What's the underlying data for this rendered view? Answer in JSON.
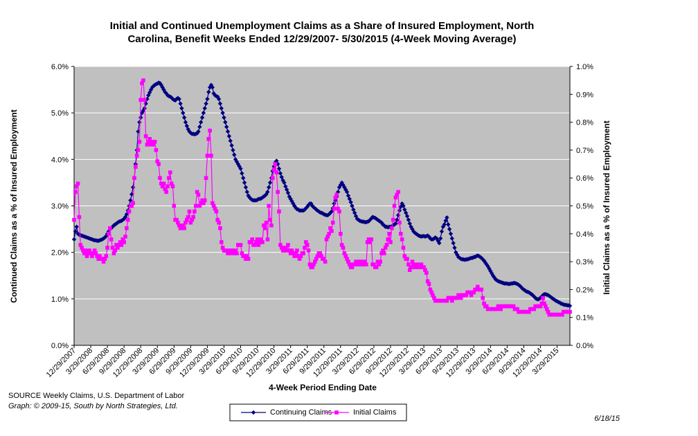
{
  "chart_data": {
    "type": "line",
    "title": [
      "Initial and Continued Unemployment Claims as a Share of Insured Employment, North",
      "Carolina, Benefit Weeks Ended 12/29/2007- 5/30/2015 (4-Week Moving Average)"
    ],
    "xlabel": "4-Week Period Ending Date",
    "ylabel": "Continued Claims as a % of Insured Employment",
    "y2label": "Initial Claims as a % of Insured Employment",
    "categories": [
      "12/29/2007",
      null,
      null,
      null,
      null,
      null,
      null,
      null,
      null,
      null,
      null,
      null,
      null,
      "3/29/2008",
      null,
      null,
      null,
      null,
      null,
      null,
      null,
      null,
      null,
      null,
      null,
      null,
      "6/29/2008",
      null,
      null,
      null,
      null,
      null,
      null,
      null,
      null,
      null,
      null,
      null,
      null,
      "9/29/2008",
      null,
      null,
      null,
      null,
      null,
      null,
      null,
      null,
      null,
      null,
      null,
      null,
      "12/29/2008",
      null,
      null,
      null,
      null,
      null,
      null,
      null,
      null,
      null,
      null,
      null,
      null,
      "3/29/2009",
      null,
      null,
      null,
      null,
      null,
      null,
      null,
      null,
      null,
      null,
      null,
      null,
      "6/29/2009",
      null,
      null,
      null,
      null,
      null,
      null,
      null,
      null,
      null,
      null,
      null,
      null,
      "9/29/2009",
      null,
      null,
      null,
      null,
      null,
      null,
      null,
      null,
      null,
      null,
      null,
      null,
      "12/29/2009",
      null,
      null,
      null,
      null,
      null,
      null,
      null,
      null,
      null,
      null,
      null,
      null,
      "3/29/2010",
      null,
      null,
      null,
      null,
      null,
      null,
      null,
      null,
      null,
      null,
      null,
      null,
      "6/29/2010",
      null,
      null,
      null,
      null,
      null,
      null,
      null,
      null,
      null,
      null,
      null,
      null,
      "9/29/2010",
      null,
      null,
      null,
      null,
      null,
      null,
      null,
      null,
      null,
      null,
      null,
      null,
      "12/29/2010",
      null,
      null,
      null,
      null,
      null,
      null,
      null,
      null,
      null,
      null,
      null,
      null,
      "3/29/2011",
      null,
      null,
      null,
      null,
      null,
      null,
      null,
      null,
      null,
      null,
      null,
      null,
      "6/29/2011",
      null,
      null,
      null,
      null,
      null,
      null,
      null,
      null,
      null,
      null,
      null,
      null,
      "9/29/2011",
      null,
      null,
      null,
      null,
      null,
      null,
      null,
      null,
      null,
      null,
      null,
      null,
      "12/29/2011",
      null,
      null,
      null,
      null,
      null,
      null,
      null,
      null,
      null,
      null,
      null,
      null,
      "3/29/2012",
      null,
      null,
      null,
      null,
      null,
      null,
      null,
      null,
      null,
      null,
      null,
      null,
      "6/29/2012",
      null,
      null,
      null,
      null,
      null,
      null,
      null,
      null,
      null,
      null,
      null,
      null,
      "9/29/2012",
      null,
      null,
      null,
      null,
      null,
      null,
      null,
      null,
      null,
      null,
      null,
      null,
      "12/29/2012",
      null,
      null,
      null,
      null,
      null,
      null,
      null,
      null,
      null,
      null,
      null,
      null,
      "3/29/2013",
      null,
      null,
      null,
      null,
      null,
      null,
      null,
      null,
      null,
      null,
      null,
      null,
      "6/29/2013",
      null,
      null,
      null,
      null,
      null,
      null,
      null,
      null,
      null,
      null,
      null,
      null,
      "9/29/2013",
      null,
      null,
      null,
      null,
      null,
      null,
      null,
      null,
      null,
      null,
      null,
      null,
      "12/29/2013",
      null,
      null,
      null,
      null,
      null,
      null,
      null,
      null,
      null,
      null,
      null,
      null,
      "3/29/2014",
      null,
      null,
      null,
      null,
      null,
      null,
      null,
      null,
      null,
      null,
      null,
      null,
      "6/29/2014",
      null,
      null,
      null,
      null,
      null,
      null,
      null,
      null,
      null,
      null,
      null,
      null,
      "9/29/2014",
      null,
      null,
      null,
      null,
      null,
      null,
      null,
      null,
      null,
      null,
      null,
      null,
      "12/29/2014",
      null,
      null,
      null,
      null,
      null,
      null,
      null,
      null,
      null,
      null,
      null,
      null,
      "3/29/2015",
      null,
      null,
      null,
      null,
      null,
      null,
      null,
      null,
      null,
      null
    ],
    "series": [
      {
        "name": "Continuing Claims",
        "color": "#000080",
        "marker": "diamond",
        "values": [
          2.28,
          2.45,
          2.55,
          2.4,
          2.38,
          2.37,
          2.36,
          2.35,
          2.34,
          2.33,
          2.32,
          2.31,
          2.3,
          2.29,
          2.28,
          2.27,
          2.26,
          2.26,
          2.25,
          2.25,
          2.26,
          2.27,
          2.28,
          2.3,
          2.32,
          2.35,
          2.4,
          2.45,
          2.5,
          2.52,
          2.55,
          2.58,
          2.6,
          2.62,
          2.64,
          2.66,
          2.67,
          2.68,
          2.7,
          2.72,
          2.76,
          2.82,
          2.9,
          3.0,
          3.12,
          3.25,
          3.4,
          3.6,
          3.9,
          4.2,
          4.6,
          4.8,
          4.9,
          5.0,
          5.05,
          5.1,
          5.2,
          5.3,
          5.38,
          5.44,
          5.5,
          5.55,
          5.58,
          5.6,
          5.62,
          5.63,
          5.65,
          5.64,
          5.6,
          5.55,
          5.5,
          5.45,
          5.42,
          5.38,
          5.36,
          5.35,
          5.33,
          5.3,
          5.28,
          5.27,
          5.3,
          5.32,
          5.3,
          5.2,
          5.1,
          5.0,
          4.9,
          4.8,
          4.72,
          4.65,
          4.6,
          4.57,
          4.55,
          4.55,
          4.54,
          4.55,
          4.56,
          4.6,
          4.7,
          4.8,
          4.9,
          5.0,
          5.1,
          5.2,
          5.3,
          5.45,
          5.55,
          5.6,
          5.55,
          5.42,
          5.38,
          5.36,
          5.35,
          5.3,
          5.2,
          5.1,
          5.0,
          4.9,
          4.8,
          4.7,
          4.6,
          4.5,
          4.4,
          4.3,
          4.2,
          4.1,
          4.0,
          3.95,
          3.9,
          3.85,
          3.8,
          3.7,
          3.6,
          3.5,
          3.4,
          3.3,
          3.22,
          3.18,
          3.15,
          3.13,
          3.12,
          3.12,
          3.12,
          3.13,
          3.15,
          3.15,
          3.16,
          3.18,
          3.2,
          3.22,
          3.25,
          3.3,
          3.4,
          3.5,
          3.6,
          3.75,
          3.85,
          3.93,
          3.97,
          3.9,
          3.8,
          3.7,
          3.62,
          3.55,
          3.5,
          3.42,
          3.35,
          3.28,
          3.2,
          3.15,
          3.1,
          3.05,
          3.0,
          2.96,
          2.93,
          2.92,
          2.9,
          2.9,
          2.9,
          2.9,
          2.92,
          2.95,
          2.98,
          3.02,
          3.05,
          3.05,
          3.0,
          2.97,
          2.95,
          2.92,
          2.9,
          2.88,
          2.86,
          2.85,
          2.84,
          2.82,
          2.81,
          2.8,
          2.8,
          2.82,
          2.85,
          2.88,
          2.95,
          3.05,
          3.12,
          3.2,
          3.3,
          3.4,
          3.45,
          3.5,
          3.45,
          3.4,
          3.35,
          3.3,
          3.22,
          3.15,
          3.08,
          3.0,
          2.92,
          2.85,
          2.78,
          2.72,
          2.7,
          2.68,
          2.67,
          2.66,
          2.66,
          2.65,
          2.65,
          2.66,
          2.67,
          2.7,
          2.73,
          2.76,
          2.75,
          2.74,
          2.72,
          2.7,
          2.68,
          2.66,
          2.64,
          2.6,
          2.58,
          2.55,
          2.55,
          2.54,
          2.55,
          2.55,
          2.56,
          2.58,
          2.6,
          2.62,
          2.7,
          2.8,
          2.9,
          2.98,
          3.05,
          3.0,
          2.92,
          2.85,
          2.78,
          2.7,
          2.62,
          2.55,
          2.5,
          2.45,
          2.42,
          2.4,
          2.38,
          2.36,
          2.35,
          2.34,
          2.35,
          2.35,
          2.34,
          2.35,
          2.36,
          2.34,
          2.3,
          2.28,
          2.28,
          2.3,
          2.32,
          2.3,
          2.25,
          2.2,
          2.3,
          2.45,
          2.55,
          2.6,
          2.68,
          2.75,
          2.6,
          2.5,
          2.4,
          2.3,
          2.2,
          2.1,
          2.0,
          1.95,
          1.9,
          1.88,
          1.86,
          1.85,
          1.85,
          1.84,
          1.85,
          1.85,
          1.86,
          1.87,
          1.88,
          1.88,
          1.9,
          1.9,
          1.92,
          1.93,
          1.92,
          1.9,
          1.88,
          1.85,
          1.82,
          1.78,
          1.74,
          1.7,
          1.65,
          1.6,
          1.55,
          1.5,
          1.46,
          1.42,
          1.4,
          1.38,
          1.37,
          1.36,
          1.35,
          1.34,
          1.33,
          1.33,
          1.33,
          1.32,
          1.32,
          1.33,
          1.33,
          1.34,
          1.34,
          1.33,
          1.32,
          1.3,
          1.28,
          1.25,
          1.22,
          1.2,
          1.18,
          1.16,
          1.15,
          1.14,
          1.12,
          1.1,
          1.08,
          1.05,
          1.02,
          1.0,
          0.99,
          1.0,
          1.02,
          1.05,
          1.08,
          1.1,
          1.1,
          1.09,
          1.08,
          1.06,
          1.04,
          1.02,
          1.0,
          0.98,
          0.96,
          0.95,
          0.93,
          0.92,
          0.9,
          0.89,
          0.88,
          0.87,
          0.87,
          0.86,
          0.86,
          0.85
        ]
      },
      {
        "name": "Initial Claims",
        "color": "#ff00ff",
        "marker": "square",
        "axis": "y2",
        "values": [
          0.45,
          0.55,
          0.57,
          0.58,
          0.46,
          0.36,
          0.35,
          0.34,
          0.33,
          0.34,
          0.32,
          0.33,
          0.34,
          0.33,
          0.32,
          0.33,
          0.34,
          0.33,
          0.32,
          0.31,
          0.32,
          0.31,
          0.31,
          0.3,
          0.31,
          0.32,
          0.35,
          0.4,
          0.42,
          0.38,
          0.35,
          0.33,
          0.34,
          0.36,
          0.35,
          0.36,
          0.37,
          0.36,
          0.38,
          0.37,
          0.39,
          0.42,
          0.45,
          0.48,
          0.5,
          0.5,
          0.51,
          0.6,
          0.64,
          0.68,
          0.7,
          0.73,
          0.88,
          0.94,
          0.95,
          0.88,
          0.75,
          0.72,
          0.73,
          0.74,
          0.72,
          0.73,
          0.72,
          0.73,
          0.7,
          0.66,
          0.65,
          0.6,
          0.58,
          0.57,
          0.58,
          0.56,
          0.55,
          0.57,
          0.6,
          0.62,
          0.58,
          0.57,
          0.5,
          0.45,
          0.45,
          0.44,
          0.43,
          0.42,
          0.42,
          0.43,
          0.42,
          0.44,
          0.45,
          0.46,
          0.48,
          0.44,
          0.45,
          0.46,
          0.48,
          0.5,
          0.55,
          0.54,
          0.5,
          0.51,
          0.52,
          0.51,
          0.52,
          0.6,
          0.68,
          0.74,
          0.77,
          0.68,
          0.51,
          0.5,
          0.49,
          0.48,
          0.45,
          0.44,
          0.42,
          0.37,
          0.35,
          0.34,
          0.34,
          0.34,
          0.33,
          0.34,
          0.33,
          0.34,
          0.34,
          0.33,
          0.34,
          0.33,
          0.36,
          0.36,
          0.36,
          0.33,
          0.32,
          0.32,
          0.31,
          0.32,
          0.31,
          0.37,
          0.37,
          0.38,
          0.36,
          0.36,
          0.37,
          0.38,
          0.36,
          0.37,
          0.38,
          0.37,
          0.43,
          0.42,
          0.44,
          0.38,
          0.5,
          0.45,
          0.43,
          0.6,
          0.63,
          0.65,
          0.62,
          0.55,
          0.48,
          0.36,
          0.35,
          0.34,
          0.34,
          0.35,
          0.34,
          0.36,
          0.34,
          0.33,
          0.34,
          0.33,
          0.32,
          0.33,
          0.34,
          0.32,
          0.31,
          0.32,
          0.33,
          0.33,
          0.35,
          0.37,
          0.36,
          0.34,
          0.29,
          0.28,
          0.28,
          0.29,
          0.3,
          0.31,
          0.32,
          0.33,
          0.33,
          0.32,
          0.31,
          0.31,
          0.3,
          0.38,
          0.39,
          0.4,
          0.42,
          0.41,
          0.44,
          0.49,
          0.53,
          0.54,
          0.49,
          0.48,
          0.4,
          0.36,
          0.35,
          0.33,
          0.32,
          0.31,
          0.3,
          0.29,
          0.28,
          0.28,
          0.29,
          0.29,
          0.3,
          0.29,
          0.3,
          0.3,
          0.29,
          0.3,
          0.29,
          0.3,
          0.29,
          0.37,
          0.38,
          0.37,
          0.38,
          0.29,
          0.29,
          0.28,
          0.28,
          0.3,
          0.29,
          0.3,
          0.33,
          0.34,
          0.33,
          0.35,
          0.36,
          0.38,
          0.4,
          0.37,
          0.42,
          0.45,
          0.5,
          0.53,
          0.54,
          0.55,
          0.44,
          0.4,
          0.38,
          0.35,
          0.32,
          0.31,
          0.31,
          0.29,
          0.27,
          0.28,
          0.3,
          0.29,
          0.28,
          0.28,
          0.29,
          0.28,
          0.28,
          0.29,
          0.28,
          0.28,
          0.27,
          0.26,
          0.23,
          0.22,
          0.2,
          0.19,
          0.18,
          0.17,
          0.16,
          0.16,
          0.16,
          0.16,
          0.16,
          0.16,
          0.16,
          0.16,
          0.16,
          0.16,
          0.17,
          0.17,
          0.17,
          0.16,
          0.17,
          0.17,
          0.17,
          0.17,
          0.18,
          0.18,
          0.17,
          0.18,
          0.18,
          0.18,
          0.18,
          0.19,
          0.19,
          0.19,
          0.18,
          0.19,
          0.19,
          0.2,
          0.2,
          0.21,
          0.2,
          0.2,
          0.2,
          0.17,
          0.15,
          0.14,
          0.14,
          0.13,
          0.13,
          0.13,
          0.13,
          0.13,
          0.13,
          0.13,
          0.13,
          0.14,
          0.14,
          0.13,
          0.14,
          0.14,
          0.14,
          0.14,
          0.14,
          0.14,
          0.14,
          0.14,
          0.14,
          0.14,
          0.13,
          0.13,
          0.13,
          0.12,
          0.12,
          0.12,
          0.12,
          0.12,
          0.12,
          0.12,
          0.12,
          0.12,
          0.13,
          0.13,
          0.13,
          0.13,
          0.14,
          0.14,
          0.14,
          0.14,
          0.14,
          0.15,
          0.17,
          0.15,
          0.14,
          0.13,
          0.12,
          0.11,
          0.11,
          0.11,
          0.11,
          0.11,
          0.11,
          0.11,
          0.11,
          0.11,
          0.11,
          0.11,
          0.12,
          0.12,
          0.12,
          0.12,
          0.12,
          0.12
        ]
      }
    ],
    "ylim": [
      0,
      6
    ],
    "yticks": [
      {
        "value": 0,
        "label": "0.0%"
      },
      {
        "value": 1,
        "label": "1.0%"
      },
      {
        "value": 2,
        "label": "2.0%"
      },
      {
        "value": 3,
        "label": "3.0%"
      },
      {
        "value": 4,
        "label": "4.0%"
      },
      {
        "value": 5,
        "label": "5.0%"
      },
      {
        "value": 6,
        "label": "6.0%"
      }
    ],
    "y2lim": [
      0,
      1
    ],
    "y2ticks": [
      {
        "value": 0,
        "label": "0.0%"
      },
      {
        "value": 0.1,
        "label": "0.1%"
      },
      {
        "value": 0.2,
        "label": "0.2%"
      },
      {
        "value": 0.3,
        "label": "0.3%"
      },
      {
        "value": 0.4,
        "label": "0.4%"
      },
      {
        "value": 0.5,
        "label": "0.5%"
      },
      {
        "value": 0.6,
        "label": "0.6%"
      },
      {
        "value": 0.7,
        "label": "0.7%"
      },
      {
        "value": 0.8,
        "label": "0.8%"
      },
      {
        "value": 0.9,
        "label": "0.9%"
      },
      {
        "value": 1,
        "label": "1.0%"
      }
    ],
    "grid": true,
    "legend": "bottom"
  },
  "footer": {
    "source": "SOURCE  Weekly Claims, U.S. Department of Labor",
    "credit": "Graph: © 2009-15, South by North Strategies, Ltd.",
    "date": "6/18/15"
  }
}
